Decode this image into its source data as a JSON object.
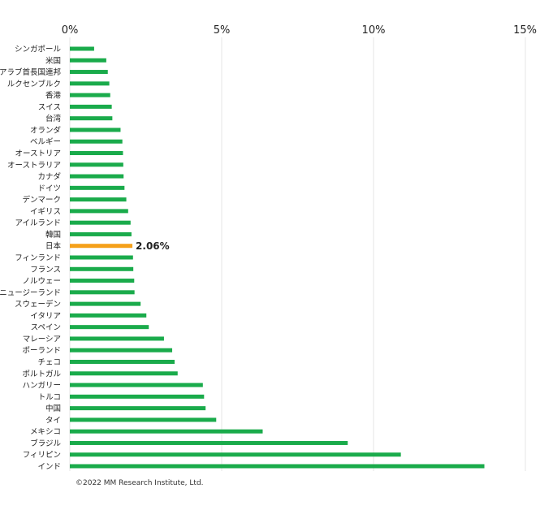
{
  "chart_data": {
    "type": "bar",
    "orientation": "horizontal",
    "xlim": [
      0,
      15
    ],
    "x_ticks": [
      0,
      5,
      10,
      15
    ],
    "x_tick_labels": [
      "0%",
      "5%",
      "10%",
      "15%"
    ],
    "tick_position": "top",
    "grid": true,
    "categories": [
      "シンガポール",
      "米国",
      "アラブ首長国連邦",
      "ルクセンブルク",
      "香港",
      "スイス",
      "台湾",
      "オランダ",
      "ベルギー",
      "オーストリア",
      "オーストラリア",
      "カナダ",
      "ドイツ",
      "デンマーク",
      "イギリス",
      "アイルランド",
      "韓国",
      "日本",
      "フィンランド",
      "フランス",
      "ノルウェー",
      "ニュージーランド",
      "スウェーデン",
      "イタリア",
      "スペイン",
      "マレーシア",
      "ポーランド",
      "チェコ",
      "ポルトガル",
      "ハンガリー",
      "トルコ",
      "中国",
      "タイ",
      "メキシコ",
      "ブラジル",
      "フィリピン",
      "インド"
    ],
    "values": [
      0.8,
      1.2,
      1.25,
      1.3,
      1.33,
      1.38,
      1.4,
      1.67,
      1.73,
      1.75,
      1.76,
      1.77,
      1.8,
      1.86,
      1.92,
      2.0,
      2.03,
      2.06,
      2.08,
      2.09,
      2.12,
      2.13,
      2.33,
      2.52,
      2.6,
      3.1,
      3.37,
      3.45,
      3.55,
      4.38,
      4.42,
      4.47,
      4.82,
      6.35,
      9.15,
      10.9,
      13.65
    ],
    "highlight": {
      "category": "日本",
      "label": "2.06%"
    },
    "colors": {
      "bar": "#1aab4b",
      "highlight": "#f5a01a",
      "grid": "#e6e6e6"
    }
  },
  "footer": {
    "copyright": "©2022 MM Research Institute, Ltd."
  }
}
